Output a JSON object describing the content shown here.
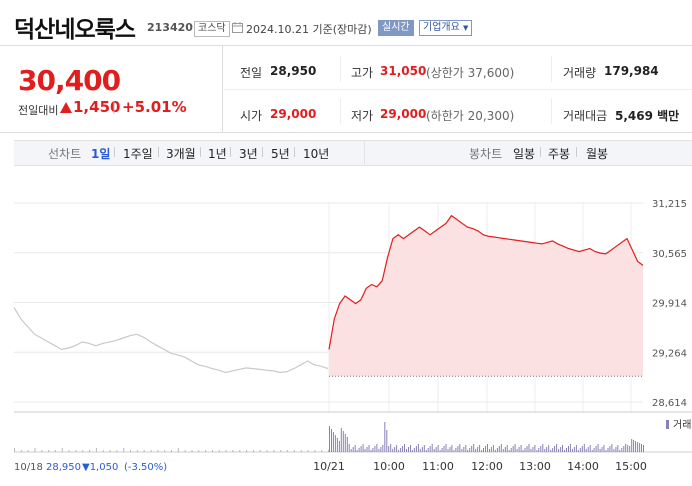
{
  "header": {
    "stock_name": "덕산네오룩스",
    "stock_code": "213420",
    "market": "코스닥",
    "date_text": "2024.10.21 기준(장마감)",
    "realtime_label": "실시간",
    "overview_label": "기업개요"
  },
  "price": {
    "current": "30,400",
    "change_label": "전일대비",
    "change_value": "1,450",
    "change_rate": "+5.01%",
    "direction": "up"
  },
  "stats": {
    "prev_close_label": "전일",
    "prev_close": "28,950",
    "high_label": "고가",
    "high": "31,050",
    "upper_limit": "(상한가 37,600)",
    "volume_label": "거래량",
    "volume": "179,984",
    "open_label": "시가",
    "open": "29,000",
    "low_label": "저가",
    "low": "29,000",
    "lower_limit": "(하한가 20,300)",
    "amount_label": "거래대금",
    "amount": "5,469 백만"
  },
  "periods": {
    "label": "선차트",
    "items": [
      "1일",
      "1주일",
      "3개월",
      "1년",
      "3년",
      "5년",
      "10년"
    ],
    "active": "1일",
    "candle_label": "봉차트",
    "candle_items": [
      "일봉",
      "주봉",
      "월봉"
    ]
  },
  "chart_data": {
    "type": "line",
    "ylim": [
      28614,
      31215
    ],
    "y_ticks": [
      "31,215",
      "30,565",
      "29,914",
      "29,264",
      "28,614"
    ],
    "x_ticks": [
      "10/21",
      "10:00",
      "11:00",
      "12:00",
      "13:00",
      "14:00",
      "15:00"
    ],
    "prev_close_line": 28950,
    "volume_label": "거래량",
    "footer": {
      "date": "10/18",
      "price": "28,950",
      "change": "▼1,050",
      "rate": "(-3.50%)"
    },
    "series": [
      {
        "values_prev_day": [
          29850,
          29700,
          29600,
          29500,
          29450,
          29400,
          29350,
          29300,
          29320,
          29350,
          29400,
          29380,
          29350,
          29380,
          29400,
          29420,
          29450,
          29480,
          29500,
          29460,
          29400,
          29350,
          29300,
          29250,
          29230,
          29200,
          29150,
          29100,
          29080,
          29050,
          29030,
          29000,
          29020,
          29040,
          29060,
          29050,
          29040,
          29030,
          29020,
          29000,
          29010,
          29050,
          29100,
          29150,
          29100,
          29080,
          29050
        ],
        "values_today": [
          29300,
          29700,
          29900,
          30000,
          29950,
          29900,
          29950,
          30100,
          30150,
          30120,
          30200,
          30500,
          30750,
          30800,
          30750,
          30800,
          30850,
          30900,
          30850,
          30800,
          30850,
          30900,
          30950,
          31050,
          31000,
          30950,
          30900,
          30880,
          30850,
          30800,
          30780,
          30770,
          30760,
          30750,
          30740,
          30730,
          30720,
          30710,
          30700,
          30690,
          30680,
          30700,
          30720,
          30680,
          30650,
          30620,
          30600,
          30580,
          30600,
          30620,
          30580,
          30560,
          30550,
          30600,
          30650,
          30700,
          30750,
          30600,
          30450,
          30400
        ]
      }
    ]
  },
  "colors": {
    "up": "#e01e1e",
    "down": "#2a5bd7",
    "accent": "#7f99c4",
    "area_fill": "#fbe1e1",
    "prev_line": "#c9c9c9",
    "volume_bar": "#8a7fb8"
  }
}
